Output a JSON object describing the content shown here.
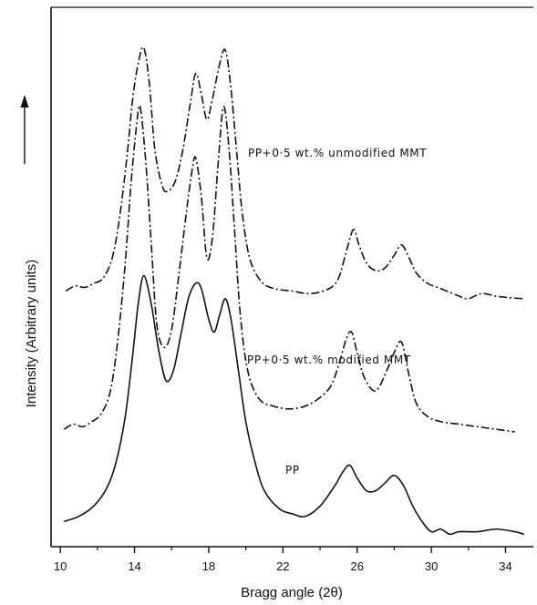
{
  "chart_data": {
    "type": "line",
    "title": "",
    "xlabel": "Bragg angle (2θ)",
    "ylabel": "Intensity (Arbitrary units)",
    "xlim": [
      9.5,
      35.5
    ],
    "xticks": [
      10,
      14,
      18,
      22,
      26,
      30,
      34
    ],
    "ylim": [
      0,
      100
    ],
    "y_ticks_shown": false,
    "grid": false,
    "legend": "none",
    "annotations": [
      "PP+0·5 wt.% unmodified MMT",
      "PP+0·5 wt.% modified MMT",
      "PP"
    ],
    "series": [
      {
        "name": "PP+0·5 wt.% unmodified MMT",
        "line_style": "dash-dot",
        "color": "#111111",
        "x": [
          10.3,
          10.8,
          11.3,
          11.8,
          12.3,
          12.8,
          13.2,
          13.6,
          13.9,
          14.2,
          14.5,
          14.8,
          15.1,
          15.5,
          15.8,
          16.2,
          16.6,
          17.0,
          17.3,
          17.6,
          17.9,
          18.2,
          18.6,
          18.9,
          19.2,
          19.5,
          19.8,
          20.2,
          20.8,
          21.5,
          22.5,
          23.5,
          24.5,
          25.0,
          25.4,
          25.8,
          26.1,
          26.5,
          27.0,
          27.5,
          28.0,
          28.4,
          28.8,
          29.2,
          29.8,
          30.5,
          31.5,
          32.0,
          32.7,
          33.5,
          34.2,
          35.0
        ],
        "y": [
          48.5,
          49.5,
          49.2,
          50.0,
          51.0,
          55.0,
          63.0,
          75.0,
          86.0,
          93.0,
          96.0,
          89.0,
          76.0,
          69.0,
          68.0,
          70.0,
          76.0,
          85.0,
          91.0,
          87.0,
          82.0,
          86.0,
          93.0,
          95.5,
          88.0,
          76.0,
          64.0,
          55.0,
          50.5,
          49.0,
          48.5,
          48.0,
          49.0,
          51.0,
          56.0,
          60.5,
          57.5,
          54.0,
          52.5,
          53.0,
          55.5,
          57.5,
          55.0,
          52.0,
          50.0,
          49.0,
          47.5,
          47.0,
          48.0,
          47.5,
          47.2,
          47.0
        ]
      },
      {
        "name": "PP+0·5 wt.% modified MMT",
        "line_style": "dash-dot",
        "color": "#111111",
        "x": [
          10.2,
          10.7,
          11.2,
          11.7,
          12.2,
          12.7,
          13.1,
          13.5,
          13.8,
          14.1,
          14.3,
          14.6,
          14.9,
          15.2,
          15.6,
          16.0,
          16.4,
          16.8,
          17.1,
          17.3,
          17.6,
          17.9,
          18.2,
          18.5,
          18.8,
          19.1,
          19.4,
          19.7,
          20.1,
          20.7,
          21.5,
          22.5,
          23.5,
          24.5,
          25.0,
          25.4,
          25.7,
          26.0,
          26.4,
          27.0,
          27.6,
          28.0,
          28.4,
          28.8,
          29.2,
          29.8,
          30.5,
          31.5,
          32.5,
          33.5,
          34.5
        ],
        "y": [
          21.5,
          22.5,
          22.0,
          23.0,
          24.5,
          29.0,
          39.0,
          54.0,
          69.0,
          80.5,
          84.5,
          74.0,
          58.0,
          42.0,
          37.5,
          41.0,
          52.0,
          64.0,
          72.0,
          74.5,
          67.0,
          55.0,
          59.0,
          73.0,
          84.5,
          76.0,
          60.0,
          44.0,
          33.0,
          27.5,
          26.0,
          25.5,
          26.5,
          29.5,
          34.0,
          39.0,
          40.5,
          36.5,
          31.5,
          29.0,
          33.0,
          36.5,
          38.5,
          32.0,
          26.5,
          24.0,
          23.0,
          22.5,
          22.0,
          21.5,
          21.0
        ]
      },
      {
        "name": "PP",
        "line_style": "solid",
        "color": "#111111",
        "x": [
          10.2,
          11.0,
          11.8,
          12.5,
          13.0,
          13.5,
          13.9,
          14.2,
          14.5,
          14.9,
          15.3,
          15.7,
          16.1,
          16.5,
          16.9,
          17.3,
          17.6,
          18.0,
          18.3,
          18.6,
          18.9,
          19.2,
          19.6,
          20.0,
          20.5,
          21.0,
          21.8,
          22.5,
          23.2,
          24.0,
          24.8,
          25.2,
          25.6,
          26.0,
          26.5,
          27.0,
          27.5,
          28.0,
          28.5,
          29.0,
          29.5,
          30.0,
          30.5,
          31.0,
          31.5,
          32.5,
          33.5,
          34.5,
          35.0
        ],
        "y": [
          3.5,
          4.5,
          6.5,
          10.0,
          15.0,
          24.0,
          36.0,
          46.0,
          51.5,
          46.0,
          37.0,
          31.0,
          33.0,
          40.0,
          47.0,
          50.0,
          49.0,
          43.0,
          40.5,
          44.0,
          47.0,
          43.0,
          33.0,
          23.0,
          15.0,
          9.5,
          6.0,
          5.0,
          4.5,
          6.5,
          10.5,
          13.0,
          14.5,
          12.0,
          9.5,
          9.5,
          11.0,
          12.5,
          10.5,
          6.5,
          3.5,
          1.5,
          2.0,
          1.0,
          1.5,
          1.5,
          2.0,
          1.5,
          1.0
        ]
      }
    ]
  }
}
